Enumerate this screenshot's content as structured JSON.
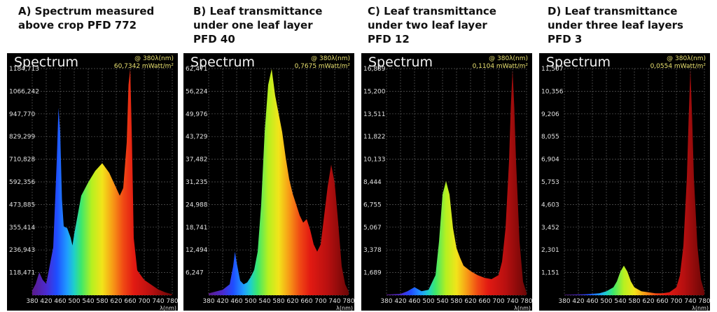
{
  "panels": [
    {
      "caption_lines": [
        "A) Spectrum measured",
        "above crop PFD 772"
      ],
      "readout_wl": "@ 380λ(nm)",
      "readout_val": "60,7342 mWatt/m²",
      "title": "Spectrum",
      "yticks": [
        "1184,713",
        "1066,242",
        "947,770",
        "829,299",
        "710,828",
        "592,356",
        "473,885",
        "355,414",
        "236,943",
        "118,471"
      ],
      "ymax": 1184.713,
      "wl": [
        380,
        390,
        400,
        410,
        420,
        440,
        450,
        455,
        460,
        465,
        470,
        480,
        490,
        495,
        500,
        510,
        520,
        540,
        560,
        580,
        600,
        610,
        620,
        630,
        640,
        650,
        655,
        660,
        665,
        670,
        680,
        700,
        720,
        740,
        760,
        780
      ],
      "vals": [
        25,
        60,
        120,
        80,
        60,
        250,
        700,
        980,
        850,
        500,
        360,
        350,
        300,
        260,
        320,
        420,
        520,
        590,
        650,
        690,
        640,
        600,
        560,
        520,
        560,
        800,
        1100,
        1184,
        800,
        300,
        130,
        80,
        55,
        30,
        15,
        5
      ]
    },
    {
      "caption_lines": [
        "B) Leaf transmittance",
        "under one leaf layer",
        "PFD 40"
      ],
      "readout_wl": "@ 380λ(nm)",
      "readout_val": "0,7675 mWatt/m²",
      "title": "Spectrum",
      "yticks": [
        "62,471",
        "56,224",
        "49,976",
        "43,729",
        "37,482",
        "31,235",
        "24,988",
        "18,741",
        "12,494",
        "6,247"
      ],
      "ymax": 62.471,
      "wl": [
        380,
        400,
        420,
        440,
        450,
        455,
        460,
        470,
        480,
        490,
        500,
        510,
        520,
        530,
        540,
        550,
        560,
        570,
        580,
        590,
        600,
        610,
        620,
        630,
        640,
        650,
        660,
        670,
        680,
        690,
        700,
        710,
        720,
        730,
        740,
        750,
        760,
        770,
        780
      ],
      "vals": [
        0.5,
        1,
        1.5,
        3,
        8,
        12,
        9,
        4,
        3,
        3.5,
        5,
        7,
        12,
        25,
        45,
        58,
        62.4,
        55,
        50,
        45,
        38,
        32,
        28,
        25,
        22,
        20,
        21,
        18,
        14,
        12,
        14,
        22,
        30,
        36,
        31,
        20,
        8,
        3,
        1
      ]
    },
    {
      "caption_lines": [
        "C) Leaf transmittance",
        "under two leaf layer",
        "PFD 12"
      ],
      "readout_wl": "@ 380λ(nm)",
      "readout_val": "0,1104 mWatt/m²",
      "title": "Spectrum",
      "yticks": [
        "16,889",
        "15,200",
        "13,511",
        "11,822",
        "10,133",
        "8,444",
        "6,755",
        "5,067",
        "3,378",
        "1,689"
      ],
      "ymax": 16.889,
      "wl": [
        380,
        420,
        440,
        460,
        480,
        500,
        520,
        530,
        540,
        550,
        560,
        570,
        580,
        590,
        600,
        620,
        640,
        660,
        680,
        700,
        710,
        720,
        730,
        735,
        740,
        745,
        750,
        760,
        770,
        780
      ],
      "vals": [
        0.05,
        0.1,
        0.3,
        0.6,
        0.3,
        0.4,
        1.5,
        4,
        7.5,
        8.5,
        7.5,
        5,
        3.5,
        2.8,
        2.2,
        1.8,
        1.5,
        1.3,
        1.2,
        1.5,
        2.5,
        5,
        10,
        14,
        16.8,
        14,
        10,
        4,
        1,
        0.2
      ]
    },
    {
      "caption_lines": [
        "D) Leaf transmittance",
        "under three leaf layers",
        "PFD 3"
      ],
      "readout_wl": "@ 380λ(nm)",
      "readout_val": "0,0554 mWatt/m²",
      "title": "Spectrum",
      "yticks": [
        "11,507",
        "10,356",
        "9,206",
        "8,055",
        "6,904",
        "5,753",
        "4,603",
        "3,452",
        "2,301",
        "1,151"
      ],
      "ymax": 11.507,
      "wl": [
        380,
        440,
        480,
        500,
        520,
        530,
        540,
        550,
        560,
        570,
        580,
        600,
        620,
        640,
        660,
        680,
        700,
        710,
        720,
        730,
        735,
        740,
        745,
        750,
        760,
        770,
        780
      ],
      "vals": [
        0.02,
        0.05,
        0.1,
        0.2,
        0.4,
        0.7,
        1.2,
        1.5,
        1.2,
        0.7,
        0.4,
        0.2,
        0.15,
        0.1,
        0.1,
        0.15,
        0.4,
        1,
        2.5,
        6,
        9,
        11.5,
        9,
        6,
        2.5,
        0.8,
        0.2
      ]
    }
  ],
  "xticks": [
    "380",
    "420",
    "460",
    "500",
    "540",
    "580",
    "620",
    "660",
    "700",
    "740",
    "780"
  ],
  "xunit": "λ(nm)",
  "chart_data": [
    {
      "type": "area",
      "title": "Spectrum",
      "xlabel": "λ(nm)",
      "xlim": [
        380,
        780
      ],
      "ylim": [
        0,
        1184.713
      ],
      "x": [
        380,
        390,
        400,
        410,
        420,
        440,
        450,
        455,
        460,
        465,
        470,
        480,
        490,
        495,
        500,
        510,
        520,
        540,
        560,
        580,
        600,
        610,
        620,
        630,
        640,
        650,
        655,
        660,
        665,
        670,
        680,
        700,
        720,
        740,
        760,
        780
      ],
      "series": [
        {
          "values": [
            25,
            60,
            120,
            80,
            60,
            250,
            700,
            980,
            850,
            500,
            360,
            350,
            300,
            260,
            320,
            420,
            520,
            590,
            650,
            690,
            640,
            600,
            560,
            520,
            560,
            800,
            1100,
            1184,
            800,
            300,
            130,
            80,
            55,
            30,
            15,
            5
          ]
        }
      ],
      "grid": true
    },
    {
      "type": "area",
      "title": "Spectrum",
      "xlabel": "λ(nm)",
      "xlim": [
        380,
        780
      ],
      "ylim": [
        0,
        62.471
      ],
      "x": [
        380,
        400,
        420,
        440,
        450,
        455,
        460,
        470,
        480,
        490,
        500,
        510,
        520,
        530,
        540,
        550,
        560,
        570,
        580,
        590,
        600,
        610,
        620,
        630,
        640,
        650,
        660,
        670,
        680,
        690,
        700,
        710,
        720,
        730,
        740,
        750,
        760,
        770,
        780
      ],
      "series": [
        {
          "values": [
            0.5,
            1,
            1.5,
            3,
            8,
            12,
            9,
            4,
            3,
            3.5,
            5,
            7,
            12,
            25,
            45,
            58,
            62.4,
            55,
            50,
            45,
            38,
            32,
            28,
            25,
            22,
            20,
            21,
            18,
            14,
            12,
            14,
            22,
            30,
            36,
            31,
            20,
            8,
            3,
            1
          ]
        }
      ],
      "grid": true
    },
    {
      "type": "area",
      "title": "Spectrum",
      "xlabel": "λ(nm)",
      "xlim": [
        380,
        780
      ],
      "ylim": [
        0,
        16.889
      ],
      "x": [
        380,
        420,
        440,
        460,
        480,
        500,
        520,
        530,
        540,
        550,
        560,
        570,
        580,
        590,
        600,
        620,
        640,
        660,
        680,
        700,
        710,
        720,
        730,
        735,
        740,
        745,
        750,
        760,
        770,
        780
      ],
      "series": [
        {
          "values": [
            0.05,
            0.1,
            0.3,
            0.6,
            0.3,
            0.4,
            1.5,
            4,
            7.5,
            8.5,
            7.5,
            5,
            3.5,
            2.8,
            2.2,
            1.8,
            1.5,
            1.3,
            1.2,
            1.5,
            2.5,
            5,
            10,
            14,
            16.8,
            14,
            10,
            4,
            1,
            0.2
          ]
        }
      ],
      "grid": true
    },
    {
      "type": "area",
      "title": "Spectrum",
      "xlabel": "λ(nm)",
      "xlim": [
        380,
        780
      ],
      "ylim": [
        0,
        11.507
      ],
      "x": [
        380,
        440,
        480,
        500,
        520,
        530,
        540,
        550,
        560,
        570,
        580,
        600,
        620,
        640,
        660,
        680,
        700,
        710,
        720,
        730,
        735,
        740,
        745,
        750,
        760,
        770,
        780
      ],
      "series": [
        {
          "values": [
            0.02,
            0.05,
            0.1,
            0.2,
            0.4,
            0.7,
            1.2,
            1.5,
            1.2,
            0.7,
            0.4,
            0.2,
            0.15,
            0.1,
            0.1,
            0.15,
            0.4,
            1,
            2.5,
            6,
            9,
            11.5,
            9,
            6,
            2.5,
            0.8,
            0.2
          ]
        }
      ],
      "grid": true
    }
  ]
}
